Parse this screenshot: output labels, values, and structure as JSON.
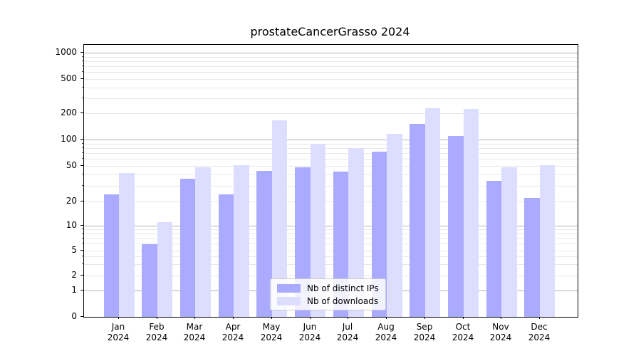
{
  "chart_data": {
    "type": "bar",
    "title": "prostateCancerGrasso 2024",
    "categories": [
      "Jan 2024",
      "Feb 2024",
      "Mar 2024",
      "Apr 2024",
      "May 2024",
      "Jun 2024",
      "Jul 2024",
      "Aug 2024",
      "Sep 2024",
      "Oct 2024",
      "Nov 2024",
      "Dec 2024"
    ],
    "series": [
      {
        "name": "Nb of distinct IPs",
        "color": "#aaaaff",
        "values": [
          24,
          6,
          36,
          24,
          44,
          48,
          43,
          73,
          150,
          110,
          34,
          22
        ]
      },
      {
        "name": "Nb of downloads",
        "color": "#ddddff",
        "values": [
          42,
          11,
          48,
          51,
          165,
          90,
          80,
          117,
          230,
          225,
          48,
          51
        ]
      }
    ],
    "yticks": [
      0,
      1,
      2,
      5,
      10,
      20,
      50,
      100,
      200,
      500,
      1000
    ],
    "ylim": [
      0,
      1000
    ],
    "yscale": "log-like with linear segment below 1",
    "xlabel": "",
    "ylabel": "",
    "grid": true,
    "legend_position": "lower center"
  }
}
